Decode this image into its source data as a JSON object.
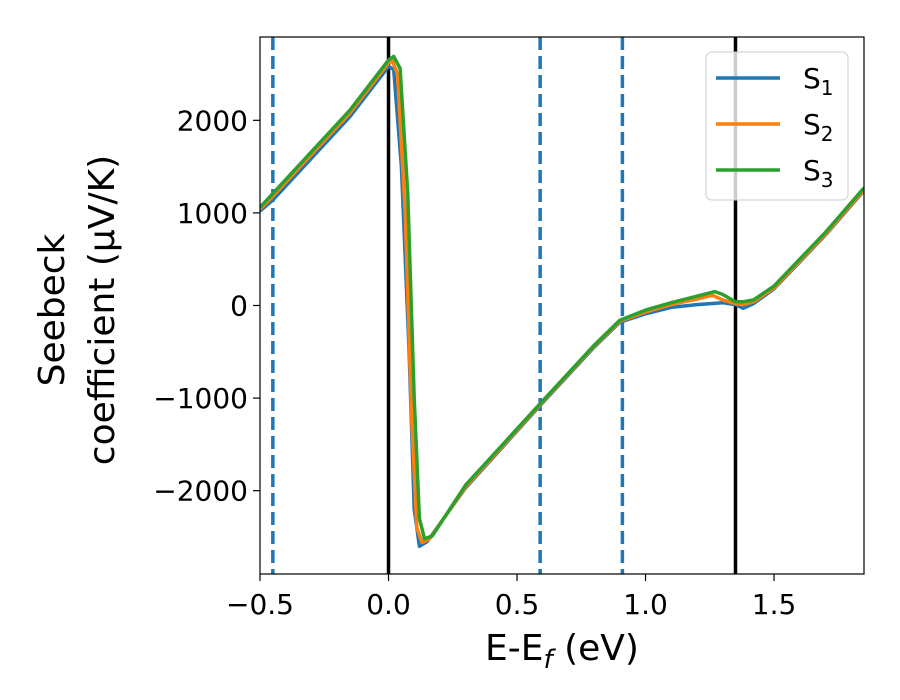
{
  "chart_data": {
    "type": "line",
    "title": "",
    "xlabel": "E-E",
    "xlabel_sub": "f",
    "xlabel_unit": " (eV)",
    "ylabel_line1": "Seebeck",
    "ylabel_line2": "coefficient  (μV/K)",
    "xlim": [
      -0.5,
      1.85
    ],
    "ylim": [
      -2900,
      2900
    ],
    "x_ticks": [
      -0.5,
      0.0,
      0.5,
      1.0,
      1.5
    ],
    "x_tick_labels": [
      "−0.5",
      "0.0",
      "0.5",
      "1.0",
      "1.5"
    ],
    "y_ticks": [
      -2000,
      -1000,
      0,
      1000,
      2000
    ],
    "y_tick_labels": [
      "−2000",
      "−1000",
      "0",
      "1000",
      "2000"
    ],
    "grid": false,
    "legend_position": "top-right",
    "vertical_lines": [
      {
        "x": -0.45,
        "style": "dashed",
        "color": "#1f77b4"
      },
      {
        "x": 0.0,
        "style": "solid",
        "color": "#000000"
      },
      {
        "x": 0.59,
        "style": "dashed",
        "color": "#1f77b4"
      },
      {
        "x": 0.91,
        "style": "dashed",
        "color": "#1f77b4"
      },
      {
        "x": 1.35,
        "style": "solid",
        "color": "#000000"
      }
    ],
    "series": [
      {
        "name": "S",
        "sub": "1",
        "color": "#1f77b4",
        "points": [
          [
            -0.5,
            1020
          ],
          [
            -0.45,
            1140
          ],
          [
            -0.3,
            1590
          ],
          [
            -0.15,
            2040
          ],
          [
            0.0,
            2580
          ],
          [
            0.02,
            2550
          ],
          [
            0.05,
            1500
          ],
          [
            0.08,
            -500
          ],
          [
            0.1,
            -2200
          ],
          [
            0.12,
            -2600
          ],
          [
            0.15,
            -2550
          ],
          [
            0.3,
            -1970
          ],
          [
            0.59,
            -1080
          ],
          [
            0.8,
            -450
          ],
          [
            0.9,
            -180
          ],
          [
            1.0,
            -90
          ],
          [
            1.1,
            -20
          ],
          [
            1.2,
            10
          ],
          [
            1.3,
            30
          ],
          [
            1.35,
            10
          ],
          [
            1.38,
            -30
          ],
          [
            1.42,
            20
          ],
          [
            1.5,
            180
          ],
          [
            1.6,
            470
          ],
          [
            1.7,
            760
          ],
          [
            1.85,
            1240
          ]
        ]
      },
      {
        "name": "S",
        "sub": "2",
        "color": "#ff7f0e",
        "points": [
          [
            -0.5,
            1040
          ],
          [
            -0.45,
            1180
          ],
          [
            -0.3,
            1630
          ],
          [
            -0.15,
            2080
          ],
          [
            0.0,
            2620
          ],
          [
            0.015,
            2640
          ],
          [
            0.035,
            2500
          ],
          [
            0.065,
            1000
          ],
          [
            0.09,
            -1200
          ],
          [
            0.11,
            -2400
          ],
          [
            0.13,
            -2560
          ],
          [
            0.16,
            -2520
          ],
          [
            0.3,
            -1960
          ],
          [
            0.59,
            -1070
          ],
          [
            0.8,
            -440
          ],
          [
            0.9,
            -170
          ],
          [
            1.0,
            -70
          ],
          [
            1.1,
            10
          ],
          [
            1.2,
            70
          ],
          [
            1.26,
            110
          ],
          [
            1.3,
            60
          ],
          [
            1.35,
            20
          ],
          [
            1.38,
            10
          ],
          [
            1.42,
            40
          ],
          [
            1.5,
            190
          ],
          [
            1.6,
            480
          ],
          [
            1.7,
            770
          ],
          [
            1.85,
            1250
          ]
        ]
      },
      {
        "name": "S",
        "sub": "3",
        "color": "#2ca02c",
        "points": [
          [
            -0.5,
            1060
          ],
          [
            -0.45,
            1210
          ],
          [
            -0.3,
            1660
          ],
          [
            -0.15,
            2110
          ],
          [
            0.0,
            2650
          ],
          [
            0.02,
            2690
          ],
          [
            0.045,
            2560
          ],
          [
            0.075,
            1200
          ],
          [
            0.1,
            -1000
          ],
          [
            0.12,
            -2300
          ],
          [
            0.14,
            -2520
          ],
          [
            0.17,
            -2490
          ],
          [
            0.3,
            -1940
          ],
          [
            0.59,
            -1060
          ],
          [
            0.8,
            -430
          ],
          [
            0.9,
            -160
          ],
          [
            1.0,
            -50
          ],
          [
            1.1,
            30
          ],
          [
            1.2,
            100
          ],
          [
            1.27,
            150
          ],
          [
            1.3,
            120
          ],
          [
            1.35,
            40
          ],
          [
            1.38,
            40
          ],
          [
            1.42,
            60
          ],
          [
            1.5,
            210
          ],
          [
            1.6,
            500
          ],
          [
            1.7,
            790
          ],
          [
            1.85,
            1270
          ]
        ]
      }
    ]
  }
}
